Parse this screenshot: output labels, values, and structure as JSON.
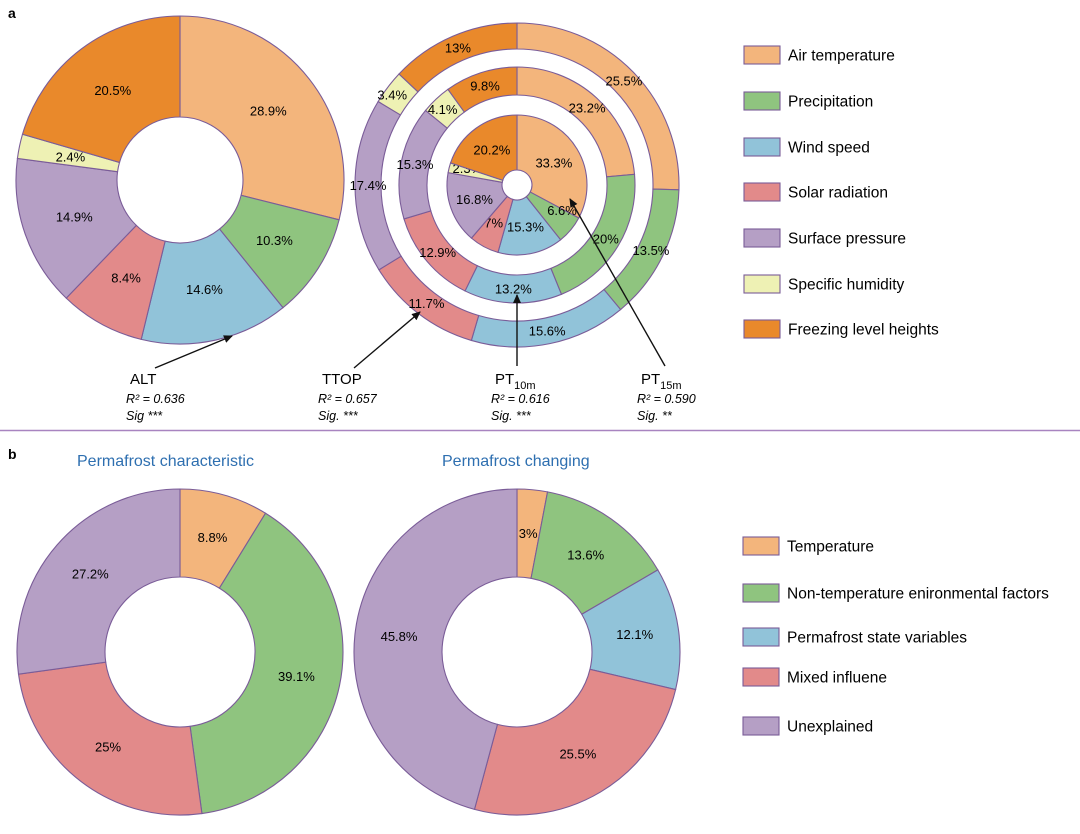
{
  "panel_a": {
    "letter": "a",
    "legend": [
      {
        "label": "Air temperature",
        "color": "#f3b57c"
      },
      {
        "label": "Precipitation",
        "color": "#8fc47f"
      },
      {
        "label": "Wind speed",
        "color": "#91c3d9"
      },
      {
        "label": "Solar radiation",
        "color": "#e28a8a"
      },
      {
        "label": "Surface pressure",
        "color": "#b59fc5"
      },
      {
        "label": "Specific humidity",
        "color": "#eef1b4"
      },
      {
        "label": "Freezing level heights",
        "color": "#e9892b"
      }
    ],
    "stats": [
      {
        "name": "ALT",
        "r2": "R² = 0.636",
        "sig": "Sig ***"
      },
      {
        "name": "TTOP",
        "r2": "R² = 0.657",
        "sig": "Sig. ***"
      },
      {
        "name": "PT",
        "sub": "10m",
        "r2": "R² = 0.616",
        "sig": "Sig. ***"
      },
      {
        "name": "PT",
        "sub": "15m",
        "r2": "R² = 0.590",
        "sig": "Sig. **"
      }
    ]
  },
  "panel_b": {
    "letter": "b",
    "titles": [
      "Permafrost characteristic",
      "Permafrost changing"
    ],
    "legend": [
      {
        "label": "Temperature",
        "color": "#f3b57c"
      },
      {
        "label": "Non-temperature enironmental factors",
        "color": "#8fc47f"
      },
      {
        "label": "Permafrost state variables",
        "color": "#91c3d9"
      },
      {
        "label": "Mixed influene",
        "color": "#e28a8a"
      },
      {
        "label": "Unexplained",
        "color": "#b59fc5"
      }
    ]
  },
  "chart_data": [
    {
      "type": "pie",
      "categories": [
        "Air temperature",
        "Precipitation",
        "Wind speed",
        "Solar radiation",
        "Surface pressure",
        "Specific humidity",
        "Freezing level heights"
      ],
      "values": [
        28.9,
        10.3,
        14.6,
        8.4,
        14.9,
        2.4,
        20.5
      ],
      "labels": [
        "28.9%",
        "10.3%",
        "14.6%",
        "8.4%",
        "14.9%",
        "2.4%",
        "20.5%"
      ],
      "colors": [
        "#f3b57c",
        "#8fc47f",
        "#91c3d9",
        "#e28a8a",
        "#b59fc5",
        "#eef1b4",
        "#e9892b"
      ]
    },
    {
      "type": "pie",
      "categories": [
        "Air temperature",
        "Precipitation",
        "Wind speed",
        "Solar radiation",
        "Surface pressure",
        "Specific humidity",
        "Freezing level heights"
      ],
      "values": [
        25.5,
        13.5,
        15.6,
        11.7,
        17.4,
        3.4,
        13
      ],
      "labels": [
        "25.5%",
        "13.5%",
        "15.6%",
        "11.7%",
        "17.4%",
        "3.4%",
        "13%"
      ],
      "colors": [
        "#f3b57c",
        "#8fc47f",
        "#91c3d9",
        "#e28a8a",
        "#b59fc5",
        "#eef1b4",
        "#e9892b"
      ]
    },
    {
      "type": "pie",
      "categories": [
        "Air temperature",
        "Precipitation",
        "Wind speed",
        "Solar radiation",
        "Surface pressure",
        "Specific humidity",
        "Freezing level heights"
      ],
      "values": [
        23.2,
        20,
        13.2,
        12.9,
        15.3,
        4.1,
        9.8
      ],
      "labels": [
        "23.2%",
        "20%",
        "13.2%",
        "12.9%",
        "15.3%",
        "4.1%",
        "9.8%"
      ],
      "colors": [
        "#f3b57c",
        "#8fc47f",
        "#91c3d9",
        "#e28a8a",
        "#b59fc5",
        "#eef1b4",
        "#e9892b"
      ]
    },
    {
      "type": "pie",
      "categories": [
        "Air temperature",
        "Precipitation",
        "Wind speed",
        "Solar radiation",
        "Surface pressure",
        "Specific humidity",
        "Freezing level heights"
      ],
      "values": [
        33.3,
        6.6,
        15.3,
        7,
        16.8,
        2.3,
        20.2
      ],
      "labels": [
        "33.3%",
        "6.6%",
        "15.3%",
        "7%",
        "16.8%",
        "2.3%",
        "20.2%"
      ],
      "colors": [
        "#f3b57c",
        "#8fc47f",
        "#91c3d9",
        "#e28a8a",
        "#b59fc5",
        "#eef1b4",
        "#e9892b"
      ]
    },
    {
      "type": "pie",
      "title": "Permafrost characteristic",
      "categories": [
        "Temperature",
        "Non-temperature enironmental factors",
        "Permafrost state variables",
        "Mixed influene",
        "Unexplained"
      ],
      "values": [
        8.8,
        39.1,
        0,
        25,
        27.2
      ],
      "labels": [
        "8.8%",
        "39.1%",
        "",
        "25%",
        "27.2%"
      ],
      "colors": [
        "#f3b57c",
        "#8fc47f",
        "#91c3d9",
        "#e28a8a",
        "#b59fc5"
      ]
    },
    {
      "type": "pie",
      "title": "Permafrost changing",
      "categories": [
        "Temperature",
        "Non-temperature enironmental factors",
        "Permafrost state variables",
        "Mixed influene",
        "Unexplained"
      ],
      "values": [
        3,
        13.6,
        12.1,
        25.5,
        45.8
      ],
      "labels": [
        "3%",
        "13.6%",
        "12.1%",
        "25.5%",
        "45.8%"
      ],
      "colors": [
        "#f3b57c",
        "#8fc47f",
        "#91c3d9",
        "#e28a8a",
        "#b59fc5"
      ]
    }
  ]
}
